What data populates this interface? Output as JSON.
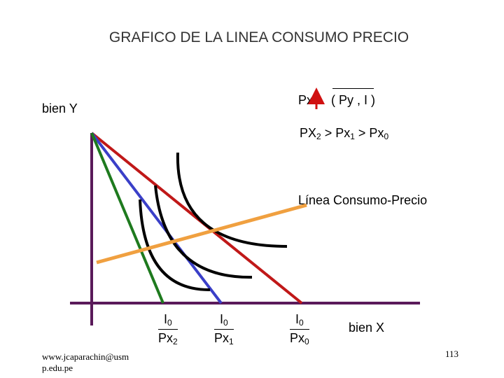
{
  "title": "GRAFICO DE LA LINEA CONSUMO PRECIO",
  "y_axis_label": "bien Y",
  "x_axis_label": "bien X",
  "annotation_px": "Px",
  "annotation_paren": "( Py , I )",
  "ordering": {
    "a": "PX",
    "a_sub": "2",
    "gt1": " > Px",
    "b_sub": "1",
    "gt2": " > Px",
    "c_sub": "0"
  },
  "curve_label": "Línea Consumo-Precio",
  "intercepts": [
    {
      "num": "I",
      "num_sub": "0",
      "den": "Px",
      "den_sub": "2"
    },
    {
      "num": "I",
      "num_sub": "0",
      "den": "Px",
      "den_sub": "1"
    },
    {
      "num": "I",
      "num_sub": "0",
      "den": "Px",
      "den_sub": "0"
    }
  ],
  "footer_email": "www.jcaparachin@usm\np.edu.pe",
  "page_number": "113",
  "colors": {
    "axis": "#5a1a5a",
    "budget_px2": "#1e7a1e",
    "budget_px1": "#3a3fc8",
    "budget_px0": "#c01818",
    "consumption_line": "#f0a040",
    "indifference": "#000000",
    "arrow": "#d01010"
  }
}
